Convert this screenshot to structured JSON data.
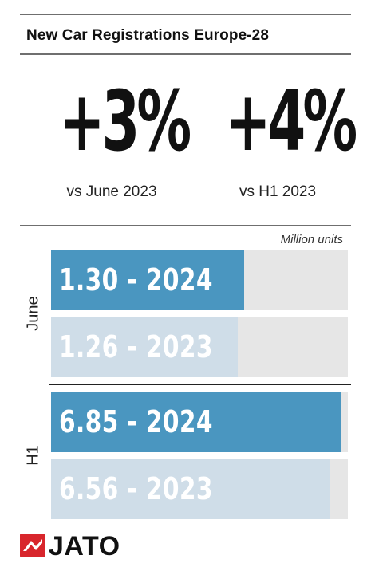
{
  "title": "New Car Registrations Europe-28",
  "stats": [
    {
      "value": "+3%",
      "label": "vs June 2023"
    },
    {
      "value": "+4%",
      "label": "vs H1 2023"
    }
  ],
  "unit": "Million units",
  "colors": {
    "current": "#4a96c0",
    "previous": "#cfdde8",
    "track": "#e6e6e6"
  },
  "logo": {
    "text": "JATO",
    "mark_color": "#d8262c",
    "icon": "jato-mark-icon"
  },
  "chart_data": {
    "type": "bar",
    "orientation": "horizontal",
    "title": "New Car Registrations Europe-28",
    "unit": "Million units",
    "max": 7.0,
    "groups": [
      {
        "name": "June",
        "bars": [
          {
            "label": "1.30 - 2024",
            "value": 1.3,
            "year": "2024",
            "max": 2.0
          },
          {
            "label": "1.26 - 2023",
            "value": 1.26,
            "year": "2023",
            "max": 2.0
          }
        ]
      },
      {
        "name": "H1",
        "bars": [
          {
            "label": "6.85 - 2024",
            "value": 6.85,
            "year": "2024",
            "max": 7.0
          },
          {
            "label": "6.56 - 2023",
            "value": 6.56,
            "year": "2023",
            "max": 7.0
          }
        ]
      }
    ]
  }
}
